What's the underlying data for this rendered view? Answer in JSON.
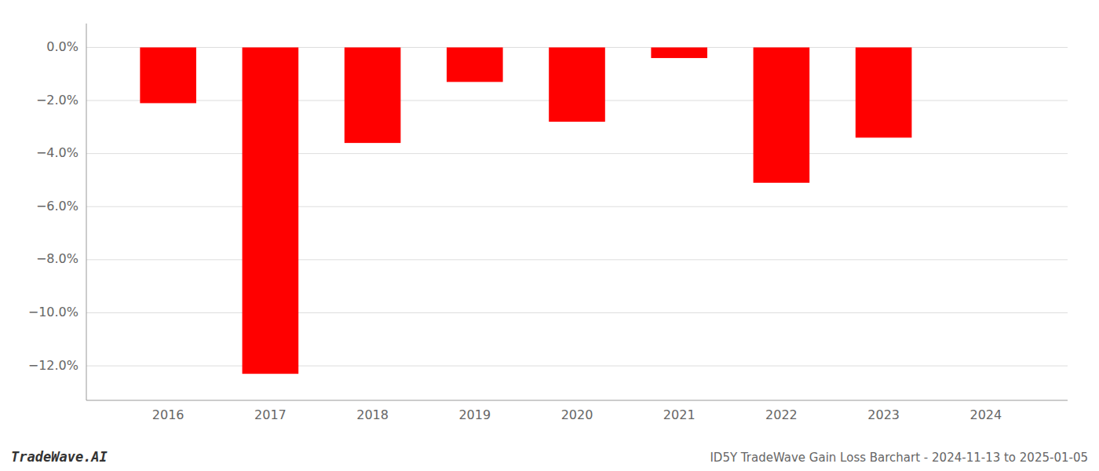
{
  "chart_data": {
    "type": "bar",
    "title": "ID5Y TradeWave Gain Loss Barchart - 2024-11-13 to 2025-01-05",
    "annotations": [
      "TradeWave.AI"
    ],
    "categories": [
      "2016",
      "2017",
      "2018",
      "2019",
      "2020",
      "2021",
      "2022",
      "2023",
      "2024"
    ],
    "values": [
      -0.021,
      -0.123,
      -0.036,
      -0.013,
      -0.028,
      -0.004,
      -0.051,
      -0.034,
      0.0
    ],
    "color": "#ff0000",
    "ylim": [
      -0.133,
      0.009
    ],
    "yticks": [
      {
        "value": 0.0,
        "label": "0.0%"
      },
      {
        "value": -0.02,
        "label": "−2.0%"
      },
      {
        "value": -0.04,
        "label": "−4.0%"
      },
      {
        "value": -0.06,
        "label": "−6.0%"
      },
      {
        "value": -0.08,
        "label": "−8.0%"
      },
      {
        "value": -0.1,
        "label": "−10.0%"
      },
      {
        "value": -0.12,
        "label": "−12.0%"
      }
    ],
    "grid": true
  }
}
